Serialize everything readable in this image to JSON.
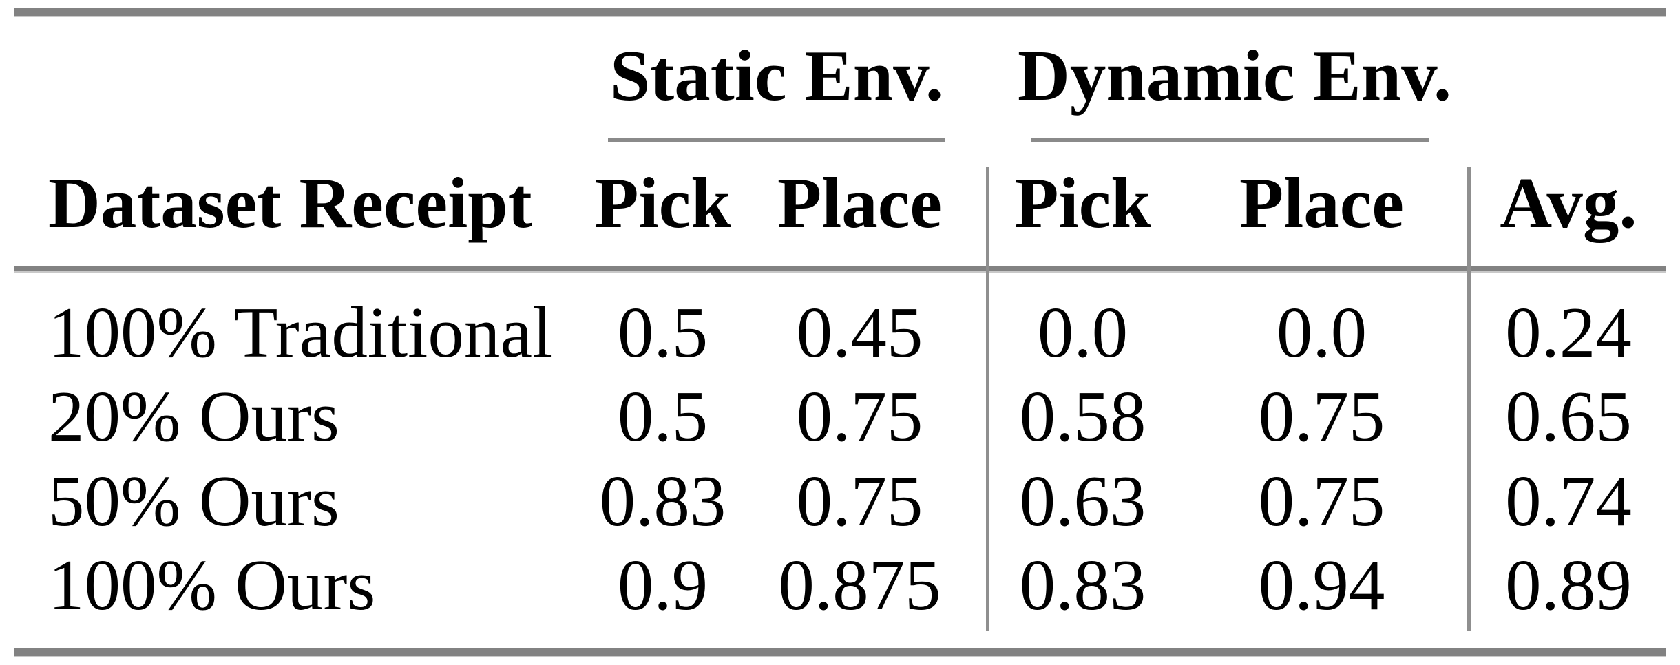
{
  "table": {
    "group_header": {
      "static": "Static Env.",
      "dynamic": "Dynamic Env."
    },
    "columns": {
      "row_label": "Dataset Receipt",
      "static_pick": "Pick",
      "static_place": "Place",
      "dynamic_pick": "Pick",
      "dynamic_place": "Place",
      "avg": "Avg."
    },
    "rows": [
      {
        "label": "100% Traditional",
        "static_pick": "0.5",
        "static_place": "0.45",
        "dynamic_pick": "0.0",
        "dynamic_place": "0.0",
        "avg": "0.24"
      },
      {
        "label": "20% Ours",
        "static_pick": "0.5",
        "static_place": "0.75",
        "dynamic_pick": "0.58",
        "dynamic_place": "0.75",
        "avg": "0.65"
      },
      {
        "label": "50% Ours",
        "static_pick": "0.83",
        "static_place": "0.75",
        "dynamic_pick": "0.63",
        "dynamic_place": "0.75",
        "avg": "0.74"
      },
      {
        "label": "100% Ours",
        "static_pick": "0.9",
        "static_place": "0.875",
        "dynamic_pick": "0.83",
        "dynamic_place": "0.94",
        "avg": "0.89"
      }
    ],
    "colors": {
      "rule": "#828282",
      "rule_highlight": "#c9c9c9",
      "divider": "#8f8f8f",
      "text": "#000000",
      "background": "#ffffff"
    }
  }
}
